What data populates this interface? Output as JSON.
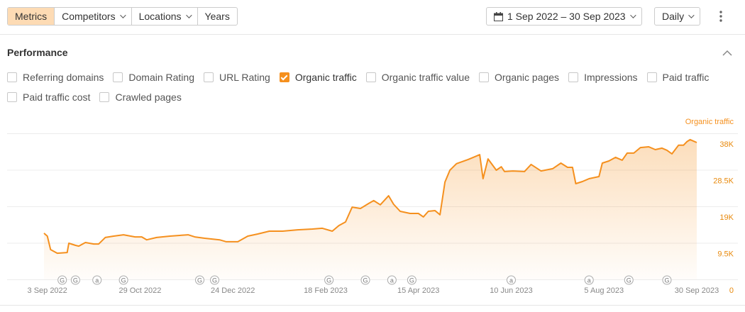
{
  "toolbar": {
    "tabs": [
      {
        "label": "Metrics",
        "active": true,
        "dropdown": false
      },
      {
        "label": "Competitors",
        "active": false,
        "dropdown": true
      },
      {
        "label": "Locations",
        "active": false,
        "dropdown": true
      },
      {
        "label": "Years",
        "active": false,
        "dropdown": false
      }
    ],
    "date_range": "1 Sep 2022 – 30 Sep 2023",
    "interval": "Daily"
  },
  "section": {
    "title": "Performance"
  },
  "metrics": [
    {
      "label": "Referring domains",
      "checked": false
    },
    {
      "label": "Domain Rating",
      "checked": false
    },
    {
      "label": "URL Rating",
      "checked": false
    },
    {
      "label": "Organic traffic",
      "checked": true
    },
    {
      "label": "Organic traffic value",
      "checked": false
    },
    {
      "label": "Organic pages",
      "checked": false
    },
    {
      "label": "Impressions",
      "checked": false
    },
    {
      "label": "Paid traffic",
      "checked": false
    },
    {
      "label": "Paid traffic cost",
      "checked": false
    },
    {
      "label": "Crawled pages",
      "checked": false
    }
  ],
  "chart_data": {
    "type": "line",
    "x": [
      "2022-09-01",
      "2022-09-03",
      "2022-09-05",
      "2022-09-09",
      "2022-09-15",
      "2022-09-16",
      "2022-09-20",
      "2022-09-22",
      "2022-09-26",
      "2022-10-01",
      "2022-10-04",
      "2022-10-08",
      "2022-10-13",
      "2022-10-19",
      "2022-10-26",
      "2022-10-30",
      "2022-11-02",
      "2022-11-08",
      "2022-11-16",
      "2022-11-27",
      "2022-12-01",
      "2022-12-07",
      "2022-12-16",
      "2022-12-20",
      "2022-12-27",
      "2023-01-02",
      "2023-01-08",
      "2023-01-15",
      "2023-01-23",
      "2023-02-01",
      "2023-02-10",
      "2023-02-16",
      "2023-02-22",
      "2023-02-26",
      "2023-03-02",
      "2023-03-06",
      "2023-03-11",
      "2023-03-16",
      "2023-03-19",
      "2023-03-23",
      "2023-03-28",
      "2023-03-31",
      "2023-04-04",
      "2023-04-10",
      "2023-04-15",
      "2023-04-18",
      "2023-04-21",
      "2023-04-25",
      "2023-04-28",
      "2023-05-01",
      "2023-05-04",
      "2023-05-08",
      "2023-05-15",
      "2023-05-19",
      "2023-05-22",
      "2023-05-24",
      "2023-05-27",
      "2023-06-01",
      "2023-06-04",
      "2023-06-06",
      "2023-06-11",
      "2023-06-18",
      "2023-06-22",
      "2023-06-28",
      "2023-07-05",
      "2023-07-10",
      "2023-07-14",
      "2023-07-17",
      "2023-07-19",
      "2023-07-23",
      "2023-07-27",
      "2023-08-02",
      "2023-08-04",
      "2023-08-08",
      "2023-08-12",
      "2023-08-16",
      "2023-08-19",
      "2023-08-23",
      "2023-08-27",
      "2023-09-01",
      "2023-09-05",
      "2023-09-09",
      "2023-09-12",
      "2023-09-15",
      "2023-09-19",
      "2023-09-22",
      "2023-09-24",
      "2023-09-26",
      "2023-09-30"
    ],
    "series": [
      {
        "name": "Organic traffic",
        "color": "#f5901e",
        "values": [
          12000,
          11250,
          7750,
          6800,
          7000,
          9400,
          8850,
          8650,
          9600,
          9200,
          9200,
          10900,
          11250,
          11600,
          11050,
          11050,
          10300,
          10900,
          11250,
          11600,
          11050,
          10700,
          10300,
          9800,
          9800,
          11250,
          11800,
          12550,
          12550,
          12900,
          13100,
          13300,
          12550,
          14000,
          14950,
          18800,
          18450,
          19750,
          20500,
          19400,
          21750,
          19550,
          17700,
          17150,
          17150,
          16250,
          17700,
          17900,
          16800,
          25300,
          28400,
          30100,
          31200,
          31900,
          32450,
          26200,
          31350,
          28400,
          29300,
          28050,
          28200,
          28050,
          29900,
          28200,
          28800,
          30250,
          29150,
          29150,
          24900,
          25450,
          26200,
          26750,
          30250,
          30800,
          31750,
          31000,
          32850,
          32850,
          34300,
          34500,
          33750,
          34150,
          33600,
          32650,
          34900,
          34900,
          35800,
          36350,
          35600
        ]
      }
    ],
    "xlim": [
      "2022-09-01",
      "2023-09-30"
    ],
    "xticks": [
      {
        "value": "2022-09-03",
        "label": "3 Sep 2022"
      },
      {
        "value": "2022-10-29",
        "label": "29 Oct 2022"
      },
      {
        "value": "2022-12-24",
        "label": "24 Dec 2022"
      },
      {
        "value": "2023-02-18",
        "label": "18 Feb 2023"
      },
      {
        "value": "2023-04-15",
        "label": "15 Apr 2023"
      },
      {
        "value": "2023-06-10",
        "label": "10 Jun 2023"
      },
      {
        "value": "2023-08-05",
        "label": "5 Aug 2023"
      },
      {
        "value": "2023-09-30",
        "label": "30 Sep 2023"
      }
    ],
    "ylim": [
      0,
      38000
    ],
    "yticks": [
      0,
      {
        "value": 9500,
        "label": "9.5K"
      },
      {
        "value": 19000,
        "label": "19K"
      },
      {
        "value": 28500,
        "label": "28.5K"
      },
      {
        "value": 38000,
        "label": "38K"
      }
    ],
    "grid": true,
    "annotations": [
      {
        "x": "2022-09-12",
        "label": "G"
      },
      {
        "x": "2022-09-20",
        "label": "G"
      },
      {
        "x": "2022-10-03",
        "label": "a"
      },
      {
        "x": "2022-10-19",
        "label": "G"
      },
      {
        "x": "2022-12-04",
        "label": "G"
      },
      {
        "x": "2022-12-13",
        "label": "G"
      },
      {
        "x": "2023-02-20",
        "label": "G"
      },
      {
        "x": "2023-03-14",
        "label": "G"
      },
      {
        "x": "2023-03-30",
        "label": "a"
      },
      {
        "x": "2023-04-11",
        "label": "G"
      },
      {
        "x": "2023-06-10",
        "label": "a"
      },
      {
        "x": "2023-07-27",
        "label": "a"
      },
      {
        "x": "2023-08-20",
        "label": "G"
      },
      {
        "x": "2023-09-12",
        "label": "G"
      }
    ]
  }
}
